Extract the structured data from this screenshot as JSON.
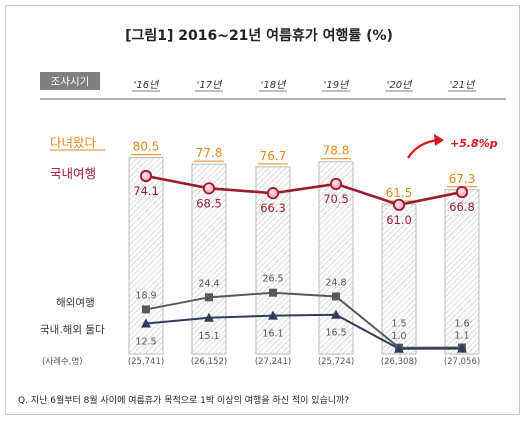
{
  "title": "[그림1]  2016~21년  여름휴가 여행률 (%)",
  "survey_label": "조사시기",
  "question": "Q. 지난 6월부터 8월 사이에 여름휴가 목적으로 1박 이상의 여행을 하신 적이 있습니까?",
  "sample_label": "(사례수,명)",
  "sample_sizes": [
    "(25,741)",
    "(26,152)",
    "(27,241)",
    "(25,724)",
    "(26,308)",
    "(27,056)"
  ],
  "change_annotation": "+5.8%p",
  "colors": {
    "traveled": "#e0891c",
    "domestic": "#9b1b30",
    "domestic_fill": "#f2b4bf",
    "overseas": "#595959",
    "both": "#2e3d5c",
    "arrow": "#d9161f",
    "bar_stroke": "#aaaaaa",
    "header_box": "#7f7f7f"
  },
  "chart_data": {
    "type": "bar",
    "categories": [
      "'16년",
      "'17년",
      "'18년",
      "'19년",
      "'20년",
      "'21년"
    ],
    "series": [
      {
        "name": "다녀왔다",
        "type": "bar",
        "values": [
          80.5,
          77.8,
          76.7,
          78.8,
          61.5,
          67.3
        ],
        "labels": [
          "80.5",
          "77.8",
          "76.7",
          "78.8",
          "61.5",
          "67.3"
        ]
      },
      {
        "name": "국내여행",
        "type": "line",
        "marker": "circle",
        "values": [
          74.1,
          68.5,
          66.3,
          70.5,
          61.0,
          66.8
        ],
        "labels": [
          "74.1",
          "68.5",
          "66.3",
          "70.5",
          "61.0",
          "66.8"
        ]
      },
      {
        "name": "해외여행",
        "type": "line",
        "marker": "square",
        "values": [
          18.9,
          24.4,
          26.5,
          24.8,
          1.5,
          1.6
        ],
        "labels": [
          "18.9",
          "24.4",
          "26.5",
          "24.8",
          "1.5",
          "1.6"
        ]
      },
      {
        "name": "국내.해외 둘다",
        "type": "line",
        "marker": "triangle",
        "values": [
          12.5,
          15.1,
          16.1,
          16.5,
          1.0,
          1.1
        ],
        "labels": [
          "12.5",
          "15.1",
          "16.1",
          "16.5",
          "1.0",
          "1.1"
        ]
      }
    ],
    "ylim": [
      0,
      100
    ]
  }
}
